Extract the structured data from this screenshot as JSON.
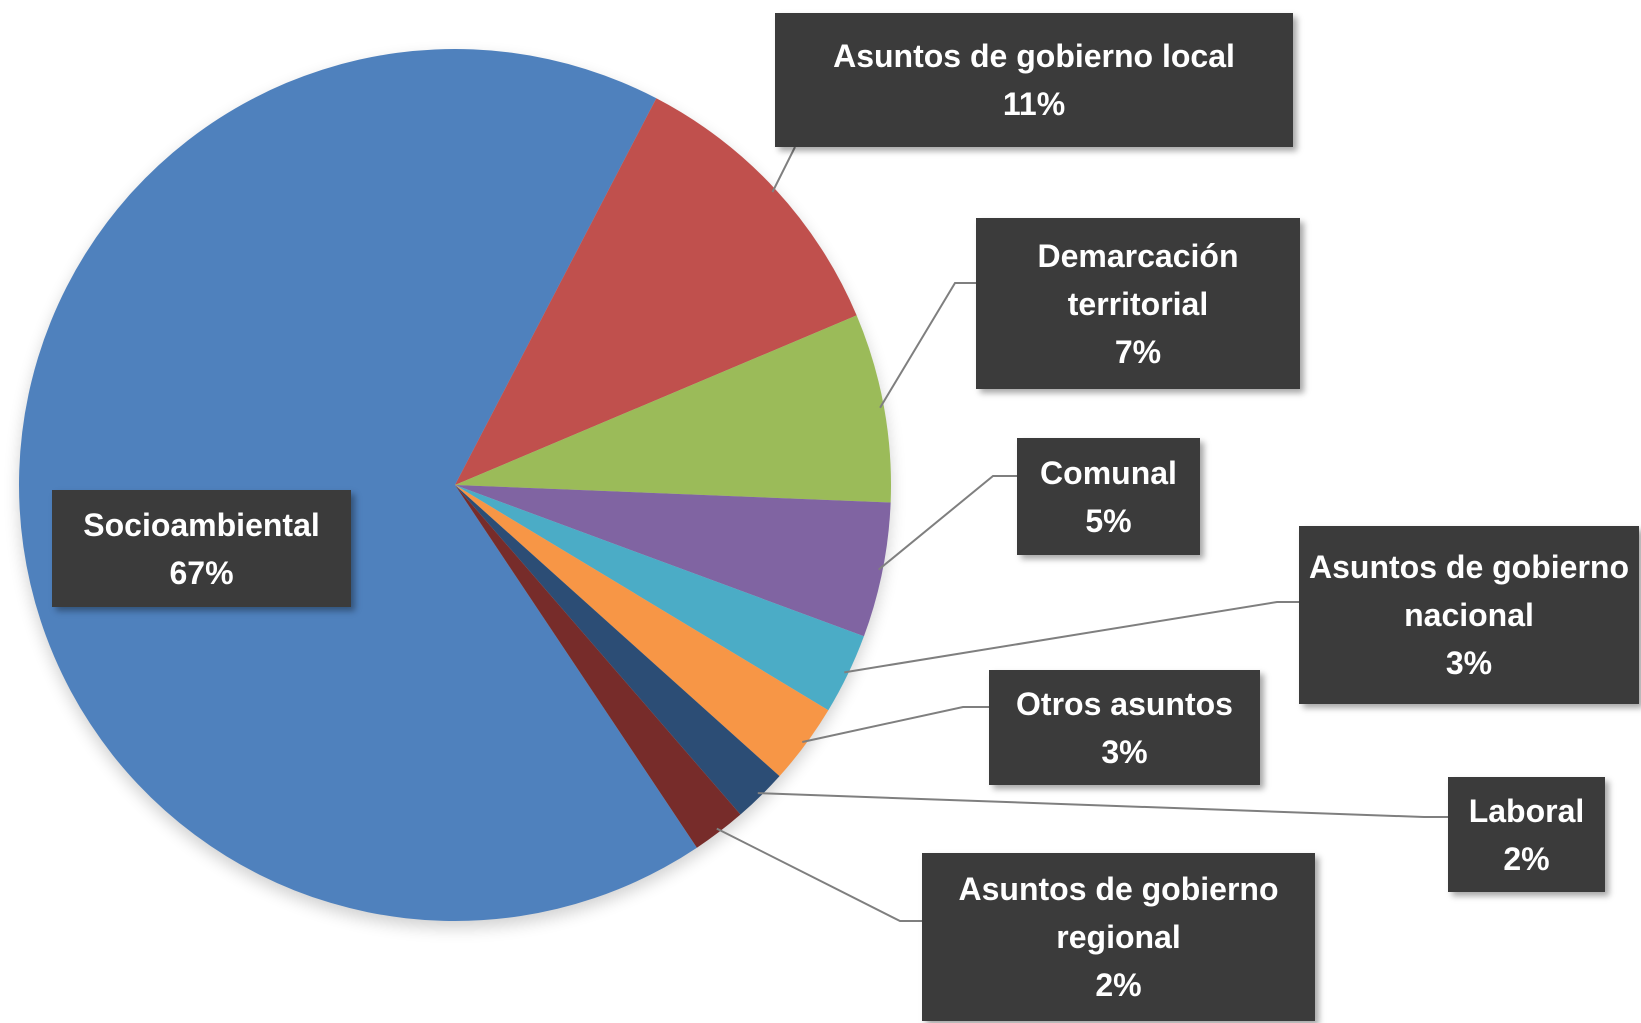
{
  "chart_data": {
    "type": "pie",
    "categories": [
      "Socioambiental",
      "Asuntos de gobierno local",
      "Demarcación territorial",
      "Comunal",
      "Asuntos de gobierno nacional",
      "Otros asuntos",
      "Laboral",
      "Asuntos de gobierno regional"
    ],
    "values": [
      67,
      11,
      7,
      5,
      3,
      3,
      2,
      2
    ],
    "value_labels": [
      "67%",
      "11%",
      "7%",
      "5%",
      "3%",
      "3%",
      "2%",
      "2%"
    ],
    "colors": [
      "#4f81bd",
      "#c0504d",
      "#9bbb59",
      "#8064a2",
      "#4bacc6",
      "#f79646",
      "#2c4d75",
      "#772c2a"
    ]
  }
}
